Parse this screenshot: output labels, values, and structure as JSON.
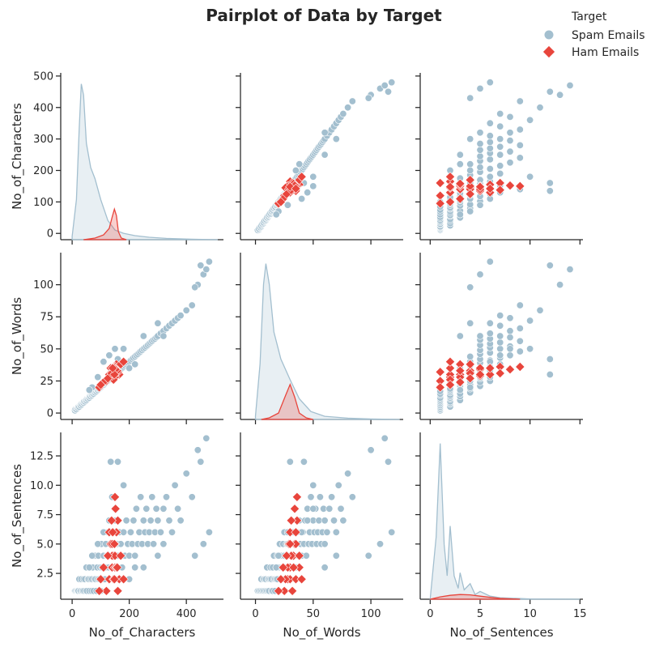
{
  "chart_data": {
    "type": "scatter",
    "title": "Pairplot of Data by Target",
    "variables": [
      "No_of_Characters",
      "No_of_Words",
      "No_of_Sentences"
    ],
    "legend": {
      "title": "Target",
      "placement": "top-right",
      "entries": [
        {
          "name": "Spam Emails",
          "color": "#a3bfcf",
          "marker": "circle"
        },
        {
          "name": "Ham Emails",
          "color": "#e8453c",
          "marker": "diamond"
        }
      ]
    },
    "axes": {
      "No_of_Characters": {
        "range": [
          -40,
          530
        ],
        "ticks": [
          0,
          200,
          400
        ],
        "tick_labels": [
          "0",
          "200",
          "400"
        ]
      },
      "No_of_Words": {
        "range": [
          -13,
          128
        ],
        "ticks": [
          0,
          50,
          100
        ],
        "tick_labels": [
          "0",
          "50",
          "100"
        ]
      },
      "No_of_Sentences": {
        "range": [
          -1,
          15.3
        ],
        "ticks": [
          0,
          5,
          10,
          15
        ],
        "tick_labels": [
          "0",
          "5",
          "10",
          "15"
        ]
      }
    },
    "y_axes": {
      "No_of_Characters": {
        "range": [
          -20,
          510
        ],
        "ticks": [
          0,
          100,
          200,
          300,
          400,
          500
        ],
        "tick_labels": [
          "0",
          "100",
          "200",
          "300",
          "400",
          "500"
        ]
      },
      "No_of_Words": {
        "range": [
          -5,
          125
        ],
        "ticks": [
          0,
          25,
          50,
          75,
          100
        ],
        "tick_labels": [
          "0",
          "25",
          "50",
          "75",
          "100"
        ]
      },
      "No_of_Sentences": {
        "range": [
          0.3,
          14.5
        ],
        "ticks": [
          2.5,
          5.0,
          7.5,
          10.0,
          12.5
        ],
        "tick_labels": [
          "2.5",
          "5.0",
          "7.5",
          "10.0",
          "12.5"
        ]
      }
    },
    "kde": {
      "No_of_Characters": {
        "Spam Emails": [
          [
            0,
            0.02
          ],
          [
            15,
            0.25
          ],
          [
            25,
            0.7
          ],
          [
            32,
            0.97
          ],
          [
            40,
            0.9
          ],
          [
            50,
            0.6
          ],
          [
            65,
            0.45
          ],
          [
            80,
            0.38
          ],
          [
            100,
            0.25
          ],
          [
            125,
            0.12
          ],
          [
            150,
            0.06
          ],
          [
            180,
            0.04
          ],
          [
            220,
            0.025
          ],
          [
            270,
            0.015
          ],
          [
            330,
            0.008
          ],
          [
            420,
            0.003
          ],
          [
            510,
            0
          ]
        ],
        "Ham Emails": [
          [
            40,
            0
          ],
          [
            80,
            0.01
          ],
          [
            110,
            0.03
          ],
          [
            130,
            0.07
          ],
          [
            140,
            0.14
          ],
          [
            148,
            0.19
          ],
          [
            155,
            0.15
          ],
          [
            162,
            0.05
          ],
          [
            172,
            0.01
          ],
          [
            190,
            0
          ]
        ]
      },
      "No_of_Words": {
        "Spam Emails": [
          [
            0,
            0.02
          ],
          [
            4,
            0.35
          ],
          [
            7,
            0.85
          ],
          [
            9,
            0.98
          ],
          [
            12,
            0.85
          ],
          [
            16,
            0.55
          ],
          [
            22,
            0.38
          ],
          [
            30,
            0.25
          ],
          [
            38,
            0.13
          ],
          [
            48,
            0.05
          ],
          [
            60,
            0.02
          ],
          [
            80,
            0.008
          ],
          [
            100,
            0.003
          ],
          [
            125,
            0
          ]
        ],
        "Ham Emails": [
          [
            5,
            0
          ],
          [
            12,
            0.01
          ],
          [
            20,
            0.04
          ],
          [
            26,
            0.15
          ],
          [
            30,
            0.22
          ],
          [
            34,
            0.14
          ],
          [
            38,
            0.04
          ],
          [
            44,
            0.01
          ],
          [
            50,
            0
          ]
        ]
      },
      "No_of_Sentences": {
        "Spam Emails": [
          [
            0,
            0
          ],
          [
            0.6,
            0.4
          ],
          [
            1,
            1.0
          ],
          [
            1.4,
            0.35
          ],
          [
            1.7,
            0.15
          ],
          [
            2,
            0.47
          ],
          [
            2.4,
            0.15
          ],
          [
            2.8,
            0.07
          ],
          [
            3,
            0.17
          ],
          [
            3.4,
            0.06
          ],
          [
            4,
            0.1
          ],
          [
            4.5,
            0.03
          ],
          [
            5,
            0.05
          ],
          [
            6,
            0.02
          ],
          [
            7,
            0.01
          ],
          [
            10,
            0.002
          ],
          [
            15,
            0
          ]
        ],
        "Ham Emails": [
          [
            0,
            0
          ],
          [
            1,
            0.015
          ],
          [
            2,
            0.025
          ],
          [
            3,
            0.03
          ],
          [
            4,
            0.028
          ],
          [
            5,
            0.02
          ],
          [
            6,
            0.012
          ],
          [
            7,
            0.005
          ],
          [
            9,
            0
          ]
        ]
      }
    },
    "points": {
      "Spam Emails": [
        [
          10,
          2,
          1
        ],
        [
          12,
          3,
          1
        ],
        [
          15,
          3,
          1
        ],
        [
          18,
          4,
          1
        ],
        [
          20,
          4,
          1
        ],
        [
          22,
          5,
          1
        ],
        [
          25,
          5,
          2
        ],
        [
          28,
          6,
          1
        ],
        [
          30,
          6,
          1
        ],
        [
          32,
          7,
          2
        ],
        [
          35,
          7,
          1
        ],
        [
          38,
          8,
          1
        ],
        [
          40,
          8,
          2
        ],
        [
          42,
          9,
          1
        ],
        [
          45,
          9,
          2
        ],
        [
          48,
          10,
          1
        ],
        [
          50,
          10,
          3
        ],
        [
          52,
          11,
          1
        ],
        [
          55,
          11,
          2
        ],
        [
          58,
          12,
          2
        ],
        [
          60,
          12,
          1
        ],
        [
          62,
          13,
          3
        ],
        [
          65,
          13,
          2
        ],
        [
          68,
          14,
          1
        ],
        [
          70,
          14,
          2
        ],
        [
          72,
          15,
          3
        ],
        [
          75,
          15,
          1
        ],
        [
          78,
          16,
          2
        ],
        [
          80,
          16,
          4
        ],
        [
          82,
          17,
          2
        ],
        [
          85,
          17,
          1
        ],
        [
          88,
          18,
          3
        ],
        [
          90,
          18,
          2
        ],
        [
          92,
          19,
          4
        ],
        [
          95,
          19,
          2
        ],
        [
          98,
          20,
          3
        ],
        [
          100,
          20,
          1
        ],
        [
          102,
          21,
          5
        ],
        [
          105,
          21,
          3
        ],
        [
          108,
          22,
          2
        ],
        [
          110,
          22,
          4
        ],
        [
          112,
          23,
          3
        ],
        [
          115,
          23,
          2
        ],
        [
          118,
          24,
          5
        ],
        [
          120,
          24,
          3
        ],
        [
          122,
          25,
          4
        ],
        [
          125,
          25,
          6
        ],
        [
          128,
          26,
          3
        ],
        [
          130,
          26,
          2
        ],
        [
          132,
          27,
          4
        ],
        [
          135,
          27,
          5
        ],
        [
          138,
          28,
          3
        ],
        [
          140,
          28,
          6
        ],
        [
          142,
          29,
          4
        ],
        [
          145,
          29,
          3
        ],
        [
          148,
          30,
          5
        ],
        [
          150,
          30,
          4
        ],
        [
          152,
          31,
          7
        ],
        [
          155,
          31,
          3
        ],
        [
          158,
          32,
          5
        ],
        [
          160,
          32,
          4
        ],
        [
          165,
          33,
          6
        ],
        [
          170,
          34,
          5
        ],
        [
          175,
          35,
          3
        ],
        [
          180,
          36,
          6
        ],
        [
          185,
          37,
          4
        ],
        [
          190,
          38,
          7
        ],
        [
          195,
          39,
          5
        ],
        [
          200,
          40,
          4
        ],
        [
          205,
          41,
          6
        ],
        [
          210,
          42,
          5
        ],
        [
          215,
          43,
          7
        ],
        [
          220,
          44,
          4
        ],
        [
          225,
          45,
          8
        ],
        [
          230,
          46,
          5
        ],
        [
          235,
          47,
          6
        ],
        [
          240,
          48,
          9
        ],
        [
          245,
          49,
          5
        ],
        [
          250,
          50,
          7
        ],
        [
          255,
          51,
          6
        ],
        [
          260,
          52,
          8
        ],
        [
          265,
          53,
          5
        ],
        [
          270,
          54,
          6
        ],
        [
          275,
          55,
          7
        ],
        [
          280,
          56,
          9
        ],
        [
          285,
          57,
          5
        ],
        [
          290,
          58,
          6
        ],
        [
          295,
          59,
          8
        ],
        [
          300,
          60,
          7
        ],
        [
          310,
          62,
          6
        ],
        [
          320,
          64,
          8
        ],
        [
          330,
          66,
          9
        ],
        [
          340,
          68,
          7
        ],
        [
          350,
          70,
          6
        ],
        [
          360,
          72,
          10
        ],
        [
          370,
          74,
          8
        ],
        [
          380,
          76,
          7
        ],
        [
          400,
          80,
          11
        ],
        [
          420,
          84,
          9
        ],
        [
          440,
          100,
          13
        ],
        [
          460,
          108,
          5
        ],
        [
          470,
          112,
          14
        ],
        [
          480,
          118,
          6
        ],
        [
          450,
          115,
          12
        ],
        [
          430,
          98,
          4
        ],
        [
          110,
          40,
          6
        ],
        [
          130,
          45,
          7
        ],
        [
          150,
          50,
          8
        ],
        [
          90,
          28,
          5
        ],
        [
          70,
          20,
          4
        ],
        [
          60,
          18,
          3
        ],
        [
          140,
          36,
          9
        ],
        [
          160,
          42,
          12
        ],
        [
          135,
          30,
          12
        ],
        [
          250,
          60,
          3
        ],
        [
          200,
          35,
          2
        ],
        [
          300,
          70,
          4
        ],
        [
          180,
          50,
          10
        ],
        [
          220,
          38,
          3
        ],
        [
          320,
          60,
          5
        ]
      ],
      "Ham Emails": [
        [
          120,
          25,
          1
        ],
        [
          130,
          28,
          2
        ],
        [
          140,
          30,
          3
        ],
        [
          145,
          32,
          4
        ],
        [
          150,
          34,
          5
        ],
        [
          155,
          35,
          6
        ],
        [
          160,
          36,
          7
        ],
        [
          165,
          30,
          2
        ],
        [
          150,
          28,
          3
        ],
        [
          140,
          33,
          4
        ],
        [
          135,
          35,
          5
        ],
        [
          155,
          38,
          3
        ],
        [
          145,
          26,
          2
        ],
        [
          160,
          32,
          1
        ],
        [
          150,
          36,
          9
        ],
        [
          130,
          30,
          6
        ],
        [
          140,
          29,
          5
        ],
        [
          150,
          31,
          4
        ],
        [
          158,
          33,
          3
        ],
        [
          148,
          35,
          2
        ],
        [
          95,
          20,
          1
        ],
        [
          110,
          24,
          3
        ],
        [
          170,
          38,
          4
        ],
        [
          180,
          40,
          2
        ],
        [
          100,
          22,
          2
        ],
        [
          125,
          27,
          4
        ],
        [
          138,
          31,
          7
        ],
        [
          152,
          34,
          8
        ],
        [
          148,
          30,
          5
        ],
        [
          142,
          35,
          6
        ]
      ]
    }
  }
}
